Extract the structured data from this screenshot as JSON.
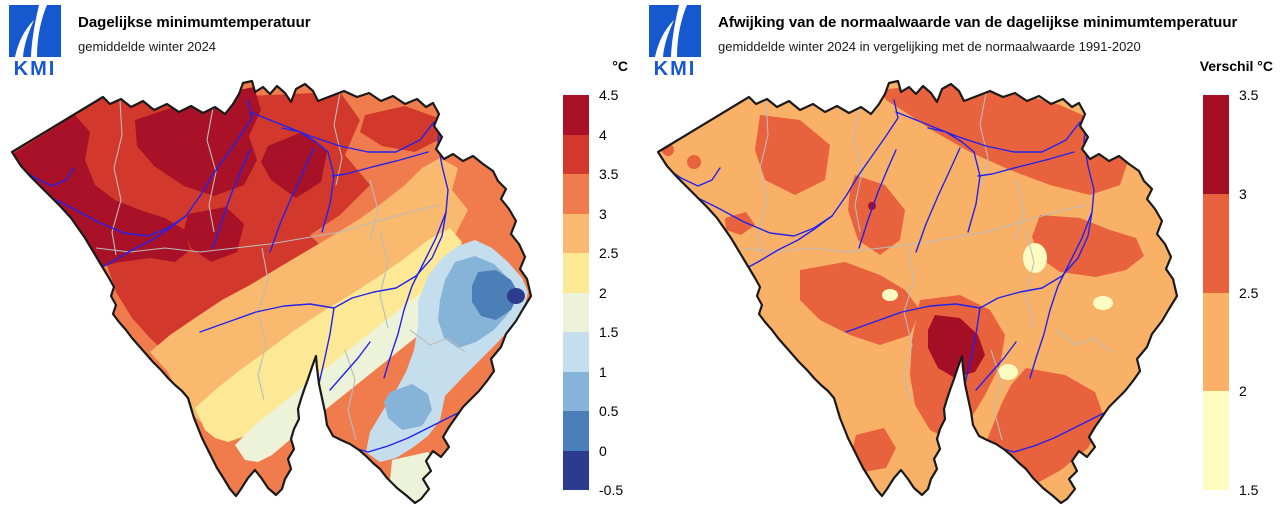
{
  "page": {
    "background": "#ffffff"
  },
  "map": {
    "country": "België",
    "country_outline_color": "#1a1a1a",
    "river_color": "#2222ee",
    "province_border_color": "#bbbbbb"
  },
  "left_panel": {
    "logo": {
      "text": "KMI",
      "color": "#1659cf"
    },
    "title": "Dagelijkse minimumtemperatuur",
    "subtitle": "gemiddelde winter 2024",
    "legend_title": "°C",
    "legend": {
      "tick_labels": [
        "4.5",
        "4",
        "3.5",
        "3",
        "2.5",
        "2",
        "1.5",
        "1",
        "0.5",
        "0",
        "-0.5"
      ],
      "colors": [
        "#a81127",
        "#d2382b",
        "#f07c4e",
        "#f9b96f",
        "#fce895",
        "#edf3d9",
        "#c5deee",
        "#86b4d8",
        "#4c7fb8",
        "#2b3c8e"
      ]
    }
  },
  "right_panel": {
    "logo": {
      "text": "KMI",
      "color": "#1659cf"
    },
    "title": "Afwijking van de normaalwaarde van de dagelijkse minimumtemperatuur",
    "subtitle": "gemiddelde winter 2024 in vergelijking met de normaalwaarde 1991-2020",
    "legend_title": "Verschil °C",
    "legend": {
      "tick_labels": [
        "3.5",
        "3",
        "2.5",
        "2",
        "1.5"
      ],
      "colors": [
        "#a50f26",
        "#e8623d",
        "#f9b168",
        "#fffcc2"
      ]
    }
  },
  "chart_data": [
    {
      "type": "heatmap",
      "title": "Dagelijkse minimumtemperatuur",
      "subtitle": "gemiddelde winter 2024",
      "region": "België",
      "unit": "°C",
      "value_range": [
        -0.5,
        4.5
      ],
      "bin_size": 0.5,
      "legend_position": "right",
      "bins_high_to_low": [
        "4–4.5",
        "3.5–4",
        "3–3.5",
        "2.5–3",
        "2–2.5",
        "1.5–2",
        "1–1.5",
        "0.5–1",
        "0–0.5",
        "-0.5–0"
      ]
    },
    {
      "type": "heatmap",
      "title": "Afwijking van de normaalwaarde van de dagelijkse minimumtemperatuur",
      "subtitle": "gemiddelde winter 2024 in vergelijking met de normaalwaarde 1991-2020",
      "region": "België",
      "unit": "Verschil °C",
      "value_range": [
        1.5,
        3.5
      ],
      "bin_size": 0.5,
      "legend_position": "right",
      "bins_high_to_low": [
        "3–3.5",
        "2.5–3",
        "2–2.5",
        "1.5–2"
      ]
    }
  ]
}
